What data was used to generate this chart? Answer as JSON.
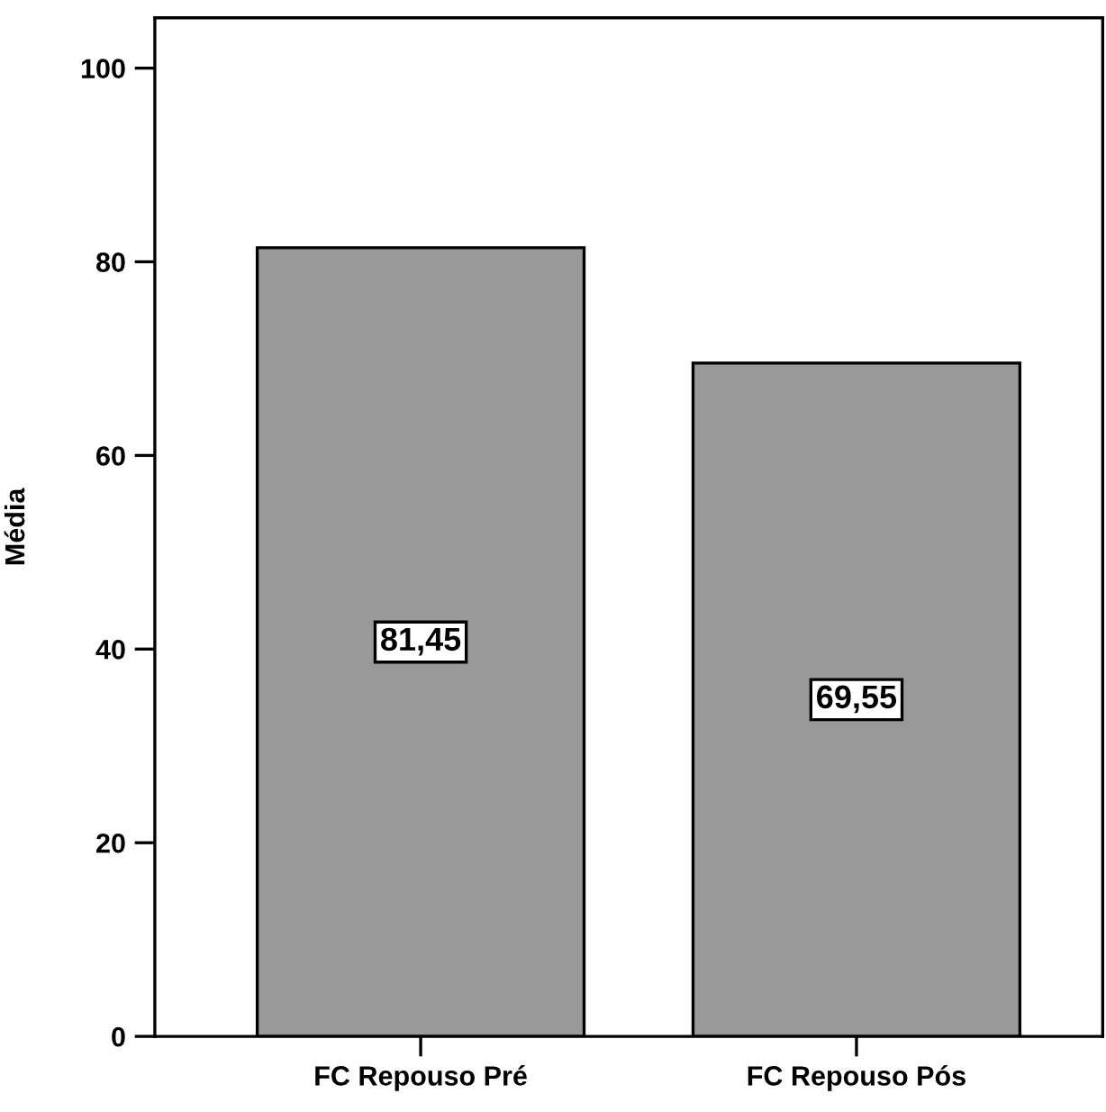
{
  "chart_data": {
    "type": "bar",
    "ylabel": "Média",
    "categories": [
      "FC Repouso Pré",
      "FC Repouso Pós"
    ],
    "values": [
      81.45,
      69.55
    ],
    "value_labels": [
      "81,45",
      "69,55"
    ],
    "color": "#999999",
    "ylim": [
      0,
      105.2
    ],
    "yticks": [
      0,
      20,
      40,
      60,
      80,
      100
    ],
    "grid": false,
    "legend": false
  }
}
